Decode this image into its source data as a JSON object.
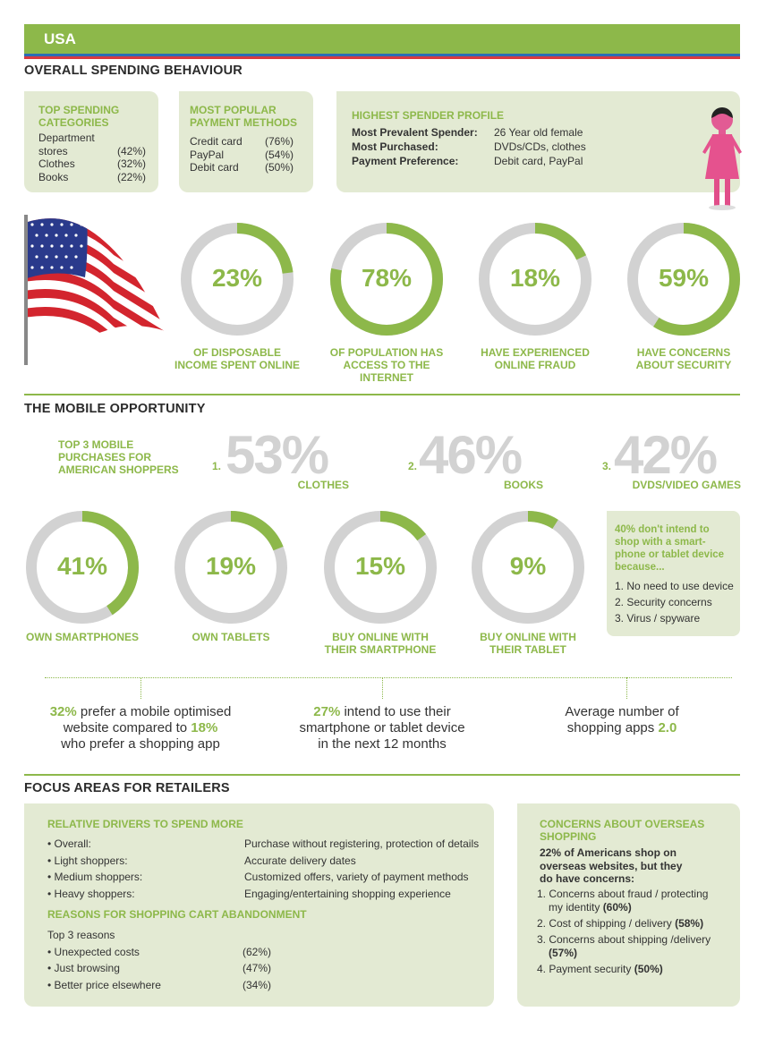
{
  "header": {
    "title": "USA"
  },
  "colors": {
    "accent": "#8db84a",
    "track": "#d2d2d2",
    "box": "#e3ead3"
  },
  "spending": {
    "title": "OVERALL SPENDING BEHAVIOUR",
    "categories": {
      "title_1": "TOP SPENDING",
      "title_2": "CATEGORIES",
      "items": [
        {
          "label_1": "Department",
          "label_2": "stores",
          "value": "(42%)"
        },
        {
          "label_1": "Clothes",
          "value": "(32%)"
        },
        {
          "label_1": "Books",
          "value": "(22%)"
        }
      ]
    },
    "payment": {
      "title_1": "MOST POPULAR",
      "title_2": "PAYMENT METHODS",
      "items": [
        {
          "label": "Credit card",
          "value": "(76%)"
        },
        {
          "label": "PayPal",
          "value": "(54%)"
        },
        {
          "label": "Debit card",
          "value": "(50%)"
        }
      ]
    },
    "profile": {
      "title": "HIGHEST SPENDER PROFILE",
      "rows": [
        {
          "label": "Most Prevalent Spender:",
          "value": "26 Year old female"
        },
        {
          "label": "Most Purchased:",
          "value": "DVDs/CDs, clothes"
        },
        {
          "label": "Payment Preference:",
          "value": "Debit card, PayPal"
        }
      ]
    },
    "donuts": [
      {
        "value": 23,
        "text": "23%",
        "label_1": "OF DISPOSABLE",
        "label_2": "INCOME SPENT ONLINE",
        "label_3": ""
      },
      {
        "value": 78,
        "text": "78%",
        "label_1": "OF POPULATION HAS",
        "label_2": "ACCESS TO THE",
        "label_3": "INTERNET"
      },
      {
        "value": 18,
        "text": "18%",
        "label_1": "HAVE EXPERIENCED",
        "label_2": "ONLINE FRAUD",
        "label_3": ""
      },
      {
        "value": 59,
        "text": "59%",
        "label_1": "HAVE CONCERNS",
        "label_2": "ABOUT SECURITY",
        "label_3": ""
      }
    ]
  },
  "mobile": {
    "title": "THE MOBILE OPPORTUNITY",
    "top3_1": "TOP 3 MOBILE",
    "top3_2": "PURCHASES FOR",
    "top3_3": "AMERICAN SHOPPERS",
    "top": [
      {
        "rank": "1.",
        "value": "53%",
        "label": "CLOTHES"
      },
      {
        "rank": "2.",
        "value": "46%",
        "label": "BOOKS"
      },
      {
        "rank": "3.",
        "value": "42%",
        "label": "DVDS/VIDEO GAMES"
      }
    ],
    "donuts": [
      {
        "value": 41,
        "text": "41%",
        "label_1": "OWN SMARTPHONES",
        "label_2": ""
      },
      {
        "value": 19,
        "text": "19%",
        "label_1": "OWN TABLETS",
        "label_2": ""
      },
      {
        "value": 15,
        "text": "15%",
        "label_1": "BUY ONLINE WITH",
        "label_2": "THEIR SMARTPHONE"
      },
      {
        "value": 9,
        "text": "9%",
        "label_1": "BUY ONLINE WITH",
        "label_2": "THEIR TABLET"
      }
    ],
    "reasons": {
      "title_1": "40% don't intend to",
      "title_2": "shop with a smart-",
      "title_3": "phone or tablet device",
      "title_4": "because...",
      "items": [
        "1. No need to use device",
        "2. Security concerns",
        "3. Virus / spyware"
      ]
    },
    "facts": {
      "f1_a": "32%",
      "f1_b": " prefer a mobile optimised",
      "f1_c": "website compared to ",
      "f1_d": "18%",
      "f1_e": "who prefer a shopping app",
      "f2_a": "27%",
      "f2_b": " intend to use their",
      "f2_c": "smartphone or tablet device",
      "f2_d": "in the next 12 months",
      "f3_a": "Average number of",
      "f3_b": "shopping apps ",
      "f3_c": "2.0"
    }
  },
  "focus": {
    "title": "FOCUS AREAS FOR RETAILERS",
    "drivers_title": "RELATIVE DRIVERS TO SPEND MORE",
    "drivers": [
      {
        "label": "• Overall:",
        "value": "Purchase without registering, protection of details"
      },
      {
        "label": "• Light shoppers:",
        "value": "Accurate delivery dates"
      },
      {
        "label": "• Medium shoppers:",
        "value": "Customized offers, variety of payment methods"
      },
      {
        "label": "• Heavy shoppers:",
        "value": "Engaging/entertaining shopping experience"
      }
    ],
    "cart_title": "REASONS FOR SHOPPING CART ABANDONMENT",
    "cart_sub": "Top 3 reasons",
    "cart": [
      {
        "label": "• Unexpected costs",
        "value": "(62%)"
      },
      {
        "label": "• Just browsing",
        "value": "(47%)"
      },
      {
        "label": "• Better price elsewhere",
        "value": "(34%)"
      }
    ],
    "overseas": {
      "title_1": "CONCERNS ABOUT OVERSEAS",
      "title_2": "SHOPPING",
      "intro_1": "22% of Americans shop on",
      "intro_2": "overseas websites, but they",
      "intro_3": "do have concerns:",
      "items": [
        {
          "text_1": "1. Concerns about fraud / protecting",
          "text_2": "my identity ",
          "pct": "(60%)"
        },
        {
          "text_1": "2. Cost of shipping / delivery ",
          "text_2": "",
          "pct": "(58%)"
        },
        {
          "text_1": "3. Concerns about shipping /delivery",
          "text_2": "",
          "pct": "(57%)"
        },
        {
          "text_1": "4. Payment security ",
          "text_2": "",
          "pct": "(50%)"
        }
      ]
    }
  }
}
